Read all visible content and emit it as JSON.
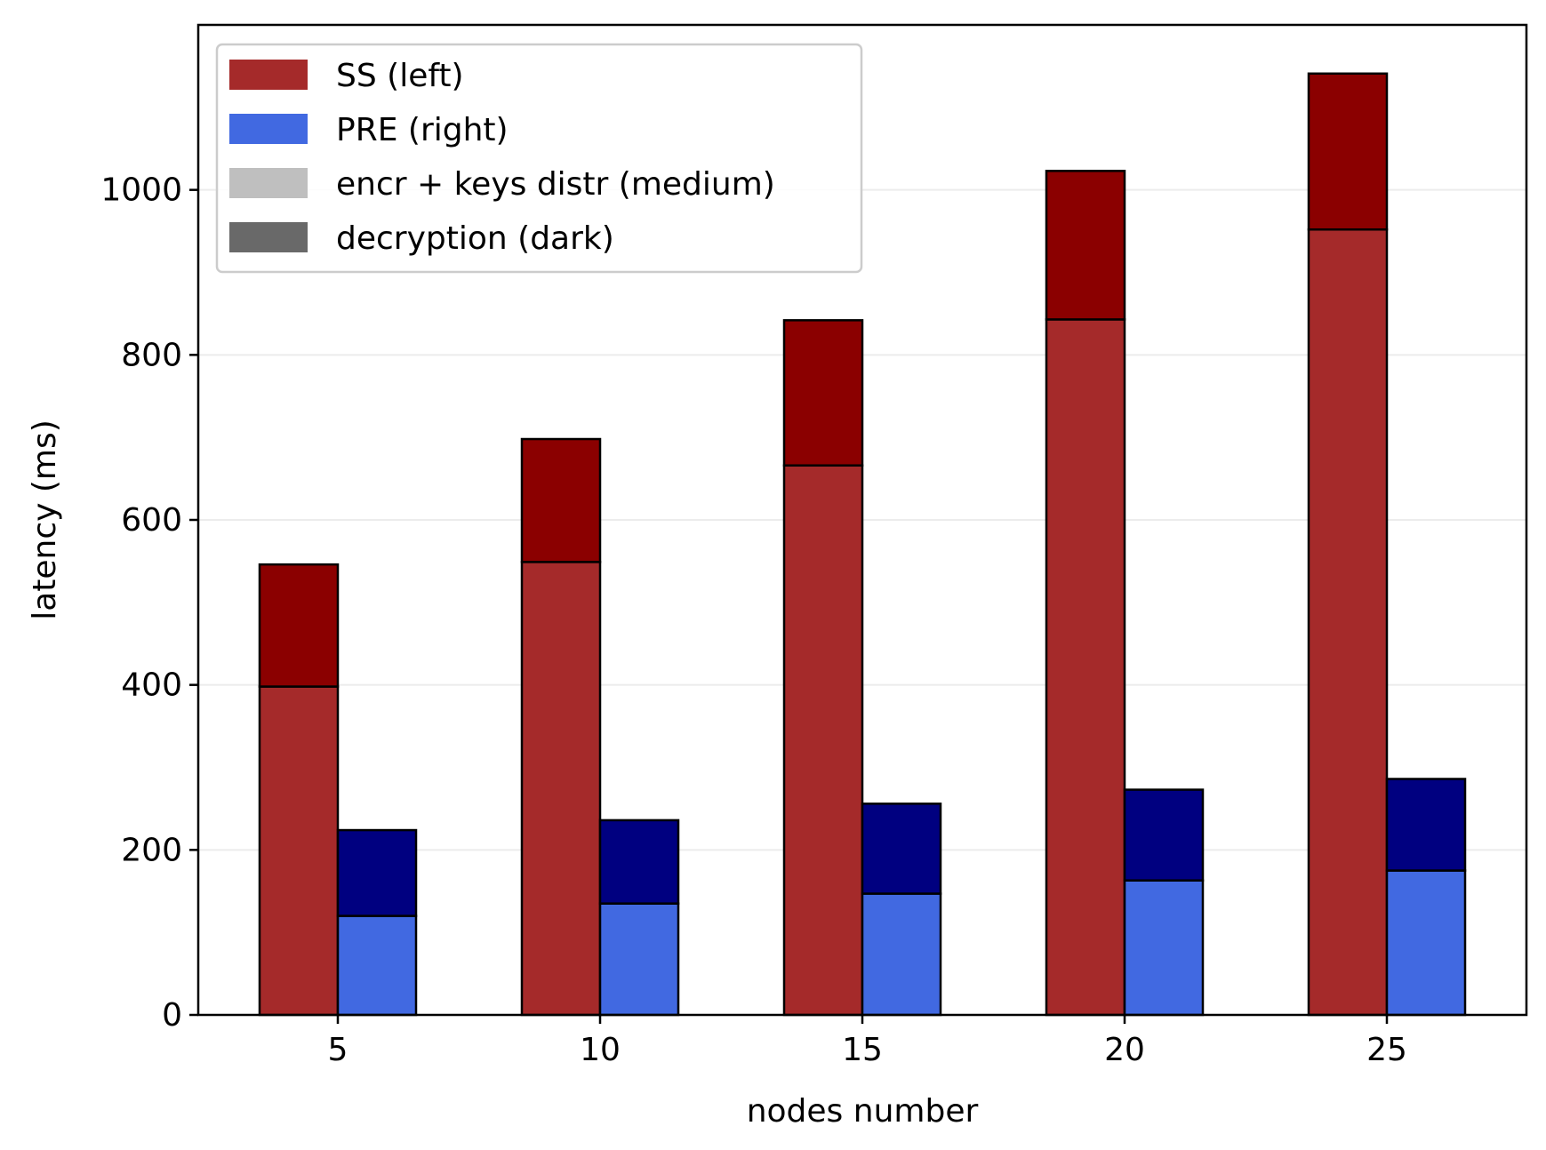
{
  "chart_data": {
    "type": "bar",
    "stacked": true,
    "grouped": true,
    "categories": [
      "5",
      "10",
      "15",
      "20",
      "25"
    ],
    "xlabel": "nodes number",
    "ylabel": "latency (ms)",
    "ylim": [
      0,
      1200
    ],
    "yticks": [
      0,
      200,
      400,
      600,
      800,
      1000
    ],
    "grid": "horizontal",
    "legend_placement": "top-left",
    "legend": [
      {
        "label": "SS (left)",
        "color": "#a52a2a"
      },
      {
        "label": "PRE (right)",
        "color": "#4169e1"
      },
      {
        "label": "encr + keys distr (medium)",
        "color": "#bfbfbf"
      },
      {
        "label": "decryption (dark)",
        "color": "#696969"
      }
    ],
    "series": [
      {
        "group": "SS",
        "stack": [
          {
            "part": "encr + keys distr",
            "color": "#a52a2a",
            "values": [
              398,
              549,
              666,
              843,
              952
            ]
          },
          {
            "part": "decryption",
            "color": "#8b0000",
            "values": [
              148,
              149,
              176,
              180,
              189
            ]
          }
        ]
      },
      {
        "group": "PRE",
        "stack": [
          {
            "part": "encr + keys distr",
            "color": "#4169e1",
            "values": [
              120,
              135,
              147,
              163,
              175
            ]
          },
          {
            "part": "decryption",
            "color": "#000080",
            "values": [
              104,
              101,
              109,
              110,
              111
            ]
          }
        ]
      }
    ]
  }
}
